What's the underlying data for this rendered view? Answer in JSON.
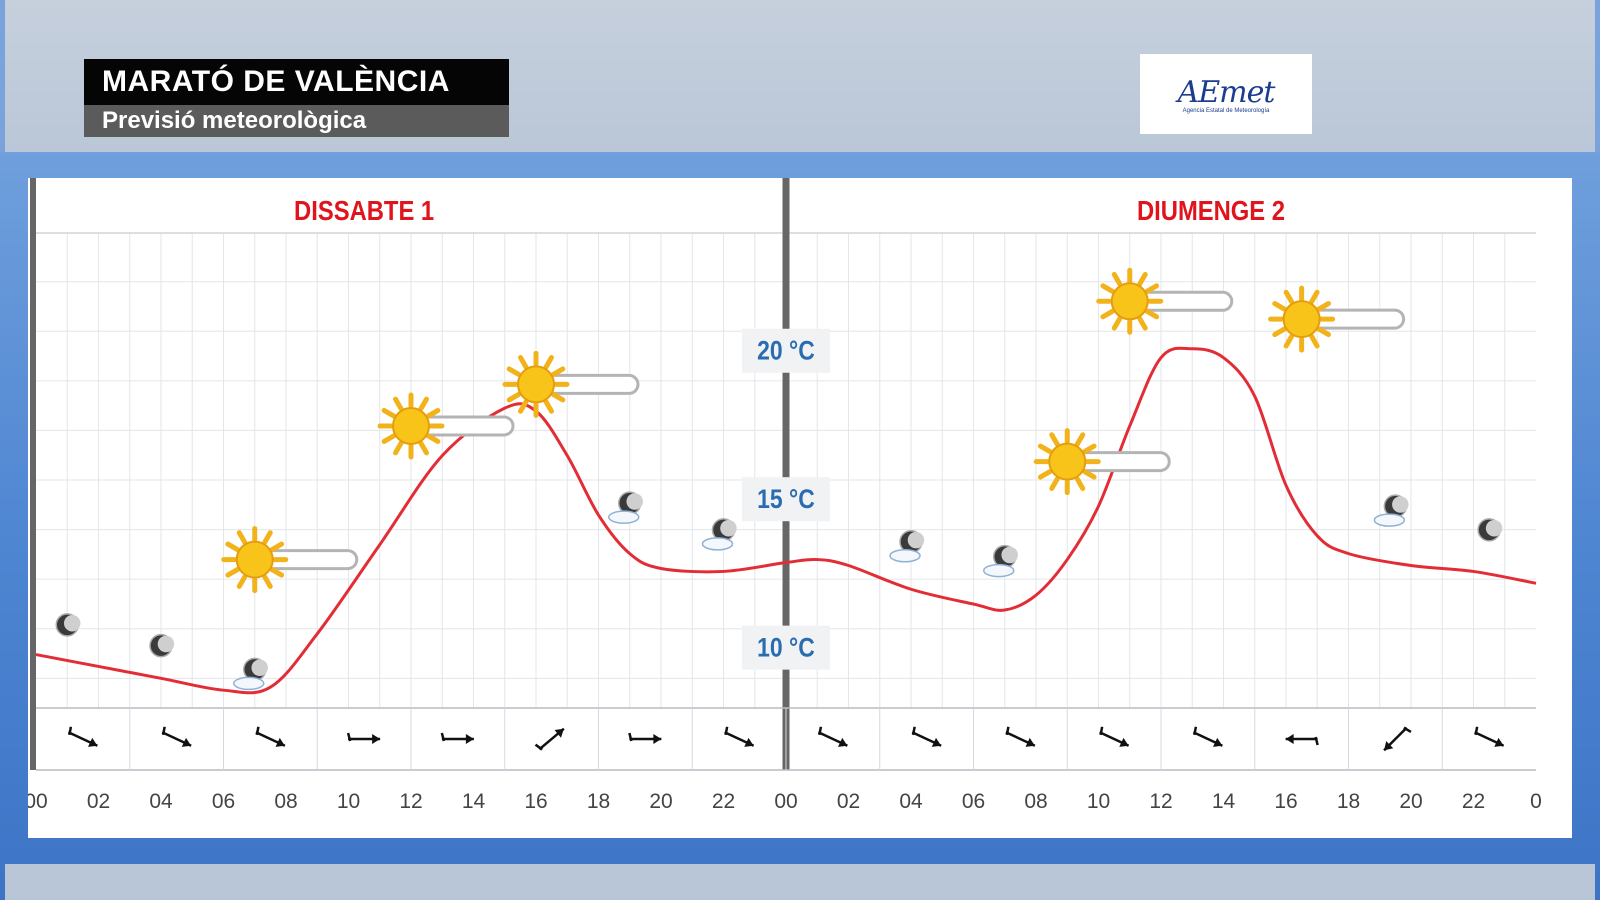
{
  "header": {
    "title": "MARATÓ DE VALÈNCIA",
    "subtitle": "Previsió meteorològica",
    "logo_text": "AEmet",
    "logo_tagline": "Agencia Estatal de Meteorología"
  },
  "colors": {
    "temperature_line": "#e32d36",
    "day_label": "#e0141c",
    "temp_label": "#2a6cb0",
    "divider": "#666666"
  },
  "chart_data": {
    "type": "line",
    "days": [
      "DISSABTE 1",
      "DIUMENGE 2"
    ],
    "ylabel_ticks": [
      "10 °C",
      "15 °C",
      "20 °C"
    ],
    "yticks": [
      10,
      15,
      20
    ],
    "ylim": [
      8,
      24
    ],
    "x_tick_labels": [
      "00",
      "02",
      "04",
      "06",
      "08",
      "10",
      "12",
      "14",
      "16",
      "18",
      "20",
      "22",
      "00",
      "02",
      "04",
      "06",
      "08",
      "10",
      "12",
      "14",
      "16",
      "18",
      "20",
      "22",
      "0"
    ],
    "xlim": [
      0,
      48
    ],
    "series": [
      {
        "x": [
          0,
          2,
          4,
          6,
          7.5,
          9,
          11,
          13,
          15,
          16,
          17,
          18,
          19,
          20,
          22,
          24,
          25,
          26,
          28,
          30,
          31,
          32,
          33,
          34,
          35,
          36,
          37,
          38,
          39,
          40,
          41,
          42,
          44,
          46,
          48
        ],
        "values": [
          9.8,
          9.4,
          9.0,
          8.6,
          8.7,
          10.5,
          13.5,
          16.5,
          18.1,
          18.0,
          16.5,
          14.5,
          13.2,
          12.7,
          12.6,
          12.9,
          13.0,
          12.8,
          12.0,
          11.5,
          11.3,
          11.8,
          13.0,
          14.8,
          17.5,
          19.8,
          20.1,
          19.8,
          18.5,
          15.5,
          13.8,
          13.2,
          12.8,
          12.6,
          12.2
        ]
      }
    ],
    "weather_icons": [
      {
        "hour": 1,
        "type": "moon",
        "temp": 10.8
      },
      {
        "hour": 4,
        "type": "moon",
        "temp": 10.1
      },
      {
        "hour": 7,
        "type": "moon-cloud",
        "temp": 9.3
      },
      {
        "hour": 7,
        "type": "sun-cloud",
        "temp": 13.0
      },
      {
        "hour": 12,
        "type": "sun-cloud",
        "temp": 17.5
      },
      {
        "hour": 16,
        "type": "sun-cloud",
        "temp": 18.9
      },
      {
        "hour": 19,
        "type": "moon-cloud",
        "temp": 14.9
      },
      {
        "hour": 22,
        "type": "moon-cloud",
        "temp": 14.0
      },
      {
        "hour": 28,
        "type": "moon-cloud",
        "temp": 13.6
      },
      {
        "hour": 31,
        "type": "moon-cloud",
        "temp": 13.1
      },
      {
        "hour": 33,
        "type": "sun-cloud",
        "temp": 16.3
      },
      {
        "hour": 35,
        "type": "sun-cloud",
        "temp": 21.7
      },
      {
        "hour": 40.5,
        "type": "sun-cloud",
        "temp": 21.1
      },
      {
        "hour": 43.5,
        "type": "moon-cloud",
        "temp": 14.8
      },
      {
        "hour": 46.5,
        "type": "moon",
        "temp": 14.0
      }
    ],
    "wind_directions": [
      "SE",
      "SE",
      "SE",
      "E",
      "E",
      "NE",
      "E",
      "SE",
      "SE",
      "SE",
      "SE",
      "SE",
      "SE",
      "W",
      "SW",
      "SE"
    ]
  }
}
